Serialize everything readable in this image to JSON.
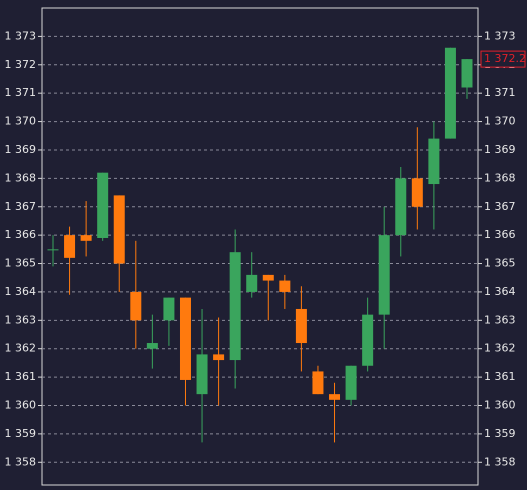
{
  "chart_data": {
    "type": "candlestick",
    "open": [
      1365.5,
      1366.0,
      1366.0,
      1365.9,
      1367.4,
      1364.0,
      1362.0,
      1363.0,
      1363.8,
      1360.4,
      1361.8,
      1361.6,
      1364.0,
      1364.6,
      1364.4,
      1363.4,
      1361.2,
      1360.4,
      1360.2,
      1361.4,
      1363.2,
      1366.0,
      1368.0,
      1367.8,
      1369.4,
      1371.2
    ],
    "high": [
      1366.0,
      1366.3,
      1367.2,
      1368.2,
      1367.4,
      1365.8,
      1363.2,
      1363.8,
      1363.8,
      1363.4,
      1363.1,
      1366.2,
      1365.4,
      1364.6,
      1364.6,
      1364.2,
      1361.4,
      1360.8,
      1361.4,
      1363.8,
      1367.0,
      1368.4,
      1369.8,
      1370.0,
      1372.6,
      1372.2
    ],
    "low": [
      1364.9,
      1363.9,
      1365.25,
      1365.8,
      1364.0,
      1362.0,
      1361.3,
      1362.1,
      1360.0,
      1358.7,
      1360.0,
      1360.6,
      1363.8,
      1363.0,
      1363.4,
      1361.2,
      1360.4,
      1358.7,
      1360.0,
      1361.2,
      1362.0,
      1365.25,
      1366.2,
      1366.2,
      1369.4,
      1370.8
    ],
    "close": [
      1365.5,
      1365.2,
      1365.8,
      1368.2,
      1365.0,
      1363.0,
      1362.2,
      1363.8,
      1360.9,
      1361.8,
      1361.6,
      1365.4,
      1364.6,
      1364.4,
      1364.0,
      1362.2,
      1360.4,
      1360.2,
      1361.4,
      1363.2,
      1366.0,
      1368.0,
      1367.0,
      1369.4,
      1372.6,
      1372.2
    ],
    "up_color": "#3aa55d",
    "down_color": "#ff7a0e",
    "ylim": [
      1357.2,
      1374.0
    ],
    "yticks": [
      {
        "value": 1358,
        "label": "1 358"
      },
      {
        "value": 1359,
        "label": "1 359"
      },
      {
        "value": 1360,
        "label": "1 360"
      },
      {
        "value": 1361,
        "label": "1 361"
      },
      {
        "value": 1362,
        "label": "1 362"
      },
      {
        "value": 1363,
        "label": "1 363"
      },
      {
        "value": 1364,
        "label": "1 364"
      },
      {
        "value": 1365,
        "label": "1 365"
      },
      {
        "value": 1366,
        "label": "1 366"
      },
      {
        "value": 1367,
        "label": "1 367"
      },
      {
        "value": 1368,
        "label": "1 368"
      },
      {
        "value": 1369,
        "label": "1 369"
      },
      {
        "value": 1370,
        "label": "1 370"
      },
      {
        "value": 1371,
        "label": "1 371"
      },
      {
        "value": 1372,
        "label": "1 372"
      },
      {
        "value": 1373,
        "label": "1 373"
      }
    ],
    "grid": true,
    "last_price": {
      "value": 1372.2,
      "label": "1 372.2"
    },
    "last_price_color": "#e0202a"
  }
}
